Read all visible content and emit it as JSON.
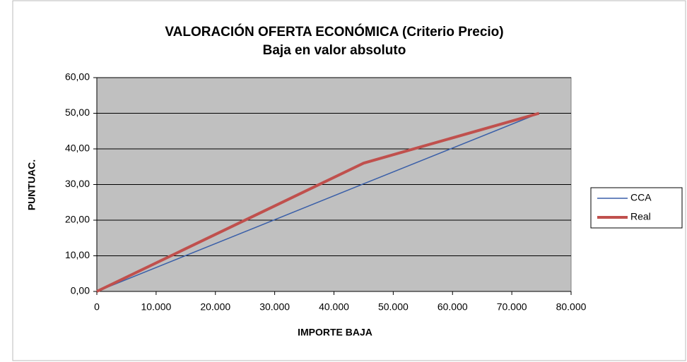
{
  "chart_data": {
    "type": "line",
    "title": "VALORACIÓN  OFERTA ECONÓMICA  (Criterio Precio)",
    "subtitle": "Baja en valor absoluto",
    "xlabel": "IMPORTE BAJA",
    "ylabel": "PUNTUAC.",
    "x": [
      0,
      45000,
      74600
    ],
    "series": [
      {
        "name": "CCA",
        "color": "#3a5fa8",
        "values": [
          0,
          30.2,
          50
        ]
      },
      {
        "name": "Real",
        "color": "#c0504d",
        "values": [
          0,
          36,
          50
        ]
      }
    ],
    "xlim": [
      0,
      80000
    ],
    "xticks": [
      0,
      {
        "value": 10000,
        "label": "10.000"
      },
      {
        "value": 20000,
        "label": "20.000"
      },
      {
        "value": 30000,
        "label": "30.000"
      },
      {
        "value": 40000,
        "label": "40.000"
      },
      {
        "value": 50000,
        "label": "50.000"
      },
      {
        "value": 60000,
        "label": "60.000"
      },
      {
        "value": 70000,
        "label": "70.000"
      },
      {
        "value": 80000,
        "label": "80.000"
      }
    ],
    "ylim": [
      0,
      60
    ],
    "yticks": [
      {
        "value": 0,
        "label": "0,00"
      },
      {
        "value": 10,
        "label": "10,00"
      },
      {
        "value": 20,
        "label": "20,00"
      },
      {
        "value": 30,
        "label": "30,00"
      },
      {
        "value": 40,
        "label": "40,00"
      },
      {
        "value": 50,
        "label": "50,00"
      },
      {
        "value": 60,
        "label": "60,00"
      }
    ],
    "grid": true,
    "legend": "right"
  }
}
